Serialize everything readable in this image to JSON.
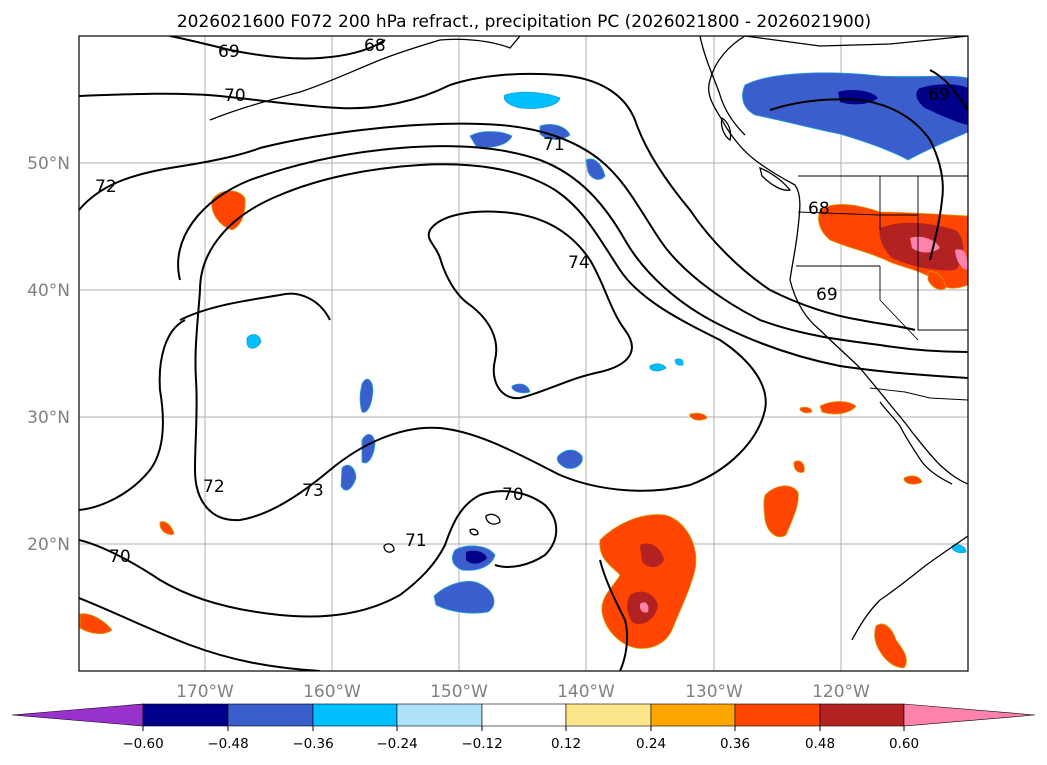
{
  "title": "2026021600 F072 200 hPa refract., precipitation PC (2026021800 - 2026021900)",
  "axes": {
    "lat_labels": [
      "50°N",
      "40°N",
      "30°N",
      "20°N"
    ],
    "lon_labels": [
      "170°W",
      "160°W",
      "150°W",
      "140°W",
      "130°W",
      "120°W"
    ]
  },
  "contour_labels": [
    "69",
    "68",
    "70",
    "71",
    "72",
    "74",
    "68",
    "69",
    "69",
    "72",
    "73",
    "70",
    "71",
    "70"
  ],
  "colorbar": {
    "ticks": [
      "−0.60",
      "−0.48",
      "−0.36",
      "−0.24",
      "−0.12",
      "0.12",
      "0.24",
      "0.36",
      "0.48",
      "0.60"
    ],
    "colors": [
      "#9932cc",
      "#00008b",
      "#3a5fcd",
      "#00bfff",
      "#afe2fa",
      "#ffffff",
      "#fde68a",
      "#ffa500",
      "#ff4500",
      "#b22222",
      "#ff82ab"
    ]
  }
}
